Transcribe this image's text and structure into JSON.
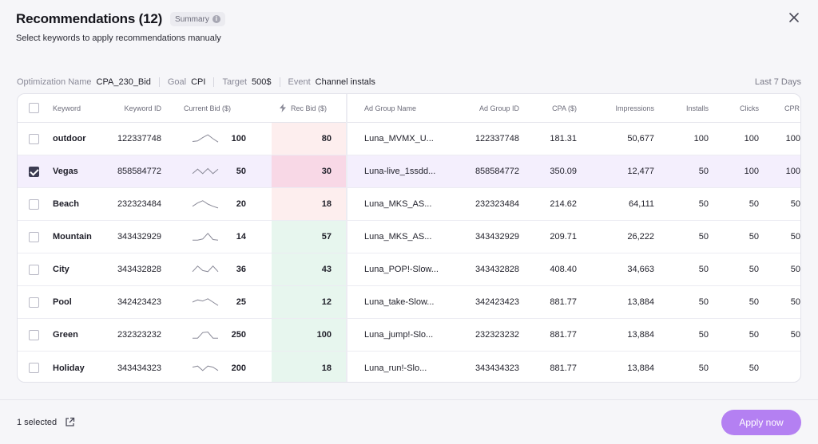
{
  "header": {
    "title": "Recommendations (12)",
    "summary_label": "Summary",
    "subtitle": "Select keywords to apply recommendations manualy"
  },
  "info_bar": {
    "optimization_label": "Optimization Name",
    "optimization_value": "CPA_230_Bid",
    "goal_label": "Goal",
    "goal_value": "CPI",
    "target_label": "Target",
    "target_value": "500$",
    "event_label": "Event",
    "event_value": "Channel instals",
    "period": "Last 7 Days"
  },
  "table": {
    "columns": {
      "keyword": "Keyword",
      "keyword_id": "Keyword ID",
      "current_bid": "Current Bid ($)",
      "rec_bid": "Rec Bid ($)",
      "ad_group_name": "Ad Group Name",
      "ad_group_id": "Ad Group ID",
      "cpa": "CPA ($)",
      "impressions": "Impressions",
      "installs": "Installs",
      "clicks": "Clicks",
      "cpr": "CPR"
    },
    "rows": [
      {
        "checked": false,
        "keyword": "outdoor",
        "keyword_id": "122337748",
        "spark": [
          0.25,
          0.3,
          0.6,
          0.85,
          0.5,
          0.2
        ],
        "current_bid": "100",
        "rec_bid": "80",
        "rec_tone": "pink",
        "ad_group_name": "Luna_MVMX_U...",
        "ad_group_id": "122337748",
        "cpa": "181.31",
        "impressions": "50,677",
        "installs": "100",
        "clicks": "100",
        "cpr": "100"
      },
      {
        "checked": true,
        "keyword": "Vegas",
        "keyword_id": "858584772",
        "spark": [
          0.3,
          0.7,
          0.3,
          0.75,
          0.3,
          0.7
        ],
        "current_bid": "50",
        "rec_bid": "30",
        "rec_tone": "pink-strong",
        "ad_group_name": "Luna-live_1ssdd...",
        "ad_group_id": "858584772",
        "cpa": "350.09",
        "impressions": "12,477",
        "installs": "50",
        "clicks": "100",
        "cpr": "100"
      },
      {
        "checked": false,
        "keyword": "Beach",
        "keyword_id": "232323484",
        "spark": [
          0.3,
          0.6,
          0.8,
          0.5,
          0.3,
          0.15
        ],
        "current_bid": "20",
        "rec_bid": "18",
        "rec_tone": "pink",
        "ad_group_name": "Luna_MKS_AS...",
        "ad_group_id": "232323484",
        "cpa": "214.62",
        "impressions": "64,111",
        "installs": "50",
        "clicks": "50",
        "cpr": "50"
      },
      {
        "checked": false,
        "keyword": "Mountain",
        "keyword_id": "343432929",
        "spark": [
          0.2,
          0.2,
          0.3,
          0.8,
          0.25,
          0.2
        ],
        "current_bid": "14",
        "rec_bid": "57",
        "rec_tone": "green",
        "ad_group_name": "Luna_MKS_AS...",
        "ad_group_id": "343432929",
        "cpa": "209.71",
        "impressions": "26,222",
        "installs": "50",
        "clicks": "50",
        "cpr": "50"
      },
      {
        "checked": false,
        "keyword": "City",
        "keyword_id": "343432828",
        "spark": [
          0.3,
          0.8,
          0.4,
          0.3,
          0.8,
          0.3
        ],
        "current_bid": "36",
        "rec_bid": "43",
        "rec_tone": "green",
        "ad_group_name": "Luna_POP!-Slow...",
        "ad_group_id": "343432828",
        "cpa": "408.40",
        "impressions": "34,663",
        "installs": "50",
        "clicks": "50",
        "cpr": "50"
      },
      {
        "checked": false,
        "keyword": "Pool",
        "keyword_id": "342423423",
        "spark": [
          0.5,
          0.7,
          0.6,
          0.8,
          0.5,
          0.2
        ],
        "current_bid": "25",
        "rec_bid": "12",
        "rec_tone": "green",
        "ad_group_name": "Luna_take-Slow...",
        "ad_group_id": "342423423",
        "cpa": "881.77",
        "impressions": "13,884",
        "installs": "50",
        "clicks": "50",
        "cpr": "50"
      },
      {
        "checked": false,
        "keyword": "Green",
        "keyword_id": "232323232",
        "spark": [
          0.2,
          0.2,
          0.7,
          0.75,
          0.2,
          0.2
        ],
        "current_bid": "250",
        "rec_bid": "100",
        "rec_tone": "green",
        "ad_group_name": "Luna_jump!-Slo...",
        "ad_group_id": "232323232",
        "cpa": "881.77",
        "impressions": "13,884",
        "installs": "50",
        "clicks": "50",
        "cpr": "50"
      },
      {
        "checked": false,
        "keyword": "Holiday",
        "keyword_id": "343434323",
        "spark": [
          0.6,
          0.7,
          0.3,
          0.7,
          0.6,
          0.3
        ],
        "current_bid": "200",
        "rec_bid": "18",
        "rec_tone": "green",
        "ad_group_name": "Luna_run!-Slo...",
        "ad_group_id": "343434323",
        "cpa": "881.77",
        "impressions": "13,884",
        "installs": "50",
        "clicks": "50",
        "cpr": ""
      }
    ]
  },
  "footer": {
    "selected_text": "1 selected",
    "apply_label": "Apply now"
  },
  "colors": {
    "pink": "#fdeeee",
    "pink-strong": "#f8d8e6",
    "green": "#e7f6ee",
    "accent": "#b480f2"
  }
}
